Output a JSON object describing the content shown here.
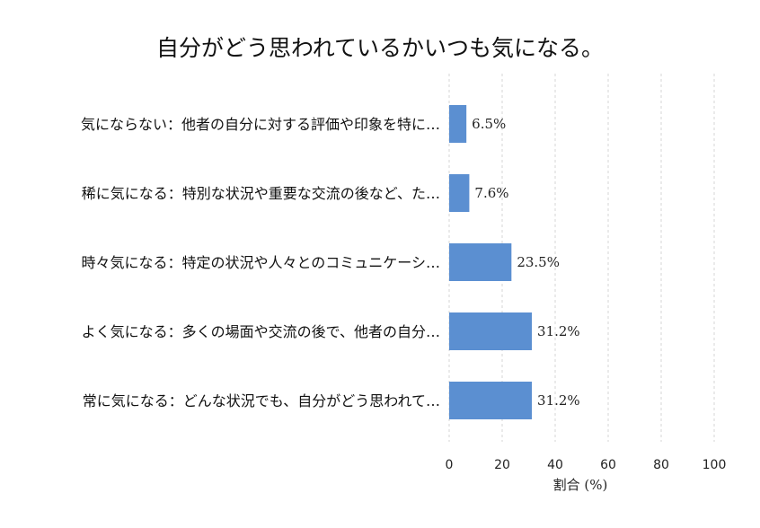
{
  "chart_data": {
    "type": "bar",
    "orientation": "horizontal",
    "title": "自分がどう思われているかいつも気になる。",
    "xlabel": "割合 (%)",
    "ylabel": "",
    "xlim": [
      0,
      100
    ],
    "xticks": [
      0,
      20,
      40,
      60,
      80,
      100
    ],
    "grid": "vertical dashed",
    "bar_color": "#5b8fd1",
    "categories": [
      "気にならない：他者の自分に対する評価や印象を特に…",
      "稀に気になる：特別な状況や重要な交流の後など、た…",
      "時々気になる：特定の状況や人々とのコミュニケーシ…",
      "よく気になる：多くの場面や交流の後で、他者の自分…",
      "常に気になる：どんな状況でも、自分がどう思われて…"
    ],
    "values": [
      6.5,
      7.6,
      23.5,
      31.2,
      31.2
    ],
    "value_labels": [
      "6.5%",
      "7.6%",
      "23.5%",
      "31.2%",
      "31.2%"
    ]
  }
}
